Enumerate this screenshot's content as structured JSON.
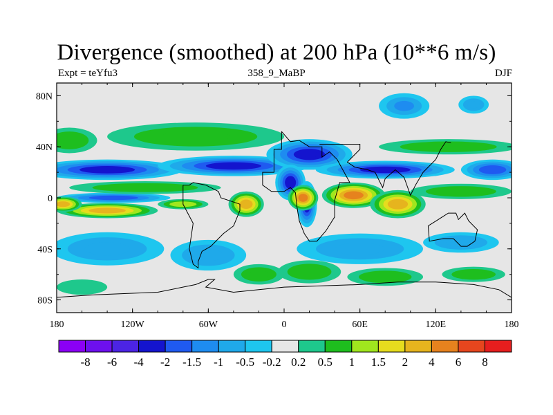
{
  "chart_data": {
    "type": "heatmap",
    "title": "Divergence (smoothed) at 200 hPa (10**6 m/s)",
    "left_label": "Expt = teYfu3",
    "center_label": "358_9_MaBP",
    "right_label": "DJF",
    "xlim": [
      -180,
      180
    ],
    "ylim": [
      -90,
      90
    ],
    "xticks": [
      {
        "value": -180,
        "label": "180"
      },
      {
        "value": -120,
        "label": "120W"
      },
      {
        "value": -60,
        "label": "60W"
      },
      {
        "value": 0,
        "label": "0"
      },
      {
        "value": 60,
        "label": "60E"
      },
      {
        "value": 120,
        "label": "120E"
      },
      {
        "value": 180,
        "label": "180"
      }
    ],
    "yticks": [
      {
        "value": 80,
        "label": "80N"
      },
      {
        "value": 40,
        "label": "40N"
      },
      {
        "value": 0,
        "label": "0"
      },
      {
        "value": -40,
        "label": "40S"
      },
      {
        "value": -80,
        "label": "80S"
      }
    ],
    "colorbar": {
      "colors": [
        "#8b00f5",
        "#6d10ee",
        "#4c24e4",
        "#1414ce",
        "#1f5af0",
        "#1e8cf0",
        "#1fa9ea",
        "#1ec6ef",
        "#e6e6e6",
        "#1ec88c",
        "#1ebe1e",
        "#a0e61e",
        "#e6dc1e",
        "#e6b41e",
        "#e6821e",
        "#e6461e",
        "#e61e1e"
      ],
      "labels": [
        "-8",
        "-6",
        "-4",
        "-2",
        "-1.5",
        "-1",
        "-0.5",
        "-0.2",
        "0.2",
        "0.5",
        "1",
        "1.5",
        "2",
        "4",
        "6",
        "8"
      ]
    },
    "fields": [
      {
        "lon": -140,
        "lat": 22,
        "rx": 60,
        "ry": 8,
        "value": -2.6
      },
      {
        "lon": -40,
        "lat": 25,
        "rx": 60,
        "ry": 8,
        "value": -2.6
      },
      {
        "lon": 20,
        "lat": 34,
        "rx": 34,
        "ry": 12,
        "value": -3.0
      },
      {
        "lon": 80,
        "lat": 22,
        "rx": 55,
        "ry": 7,
        "value": -2.2
      },
      {
        "lon": 165,
        "lat": 22,
        "rx": 25,
        "ry": 8,
        "value": -1.8
      },
      {
        "lon": 5,
        "lat": 12,
        "rx": 12,
        "ry": 14,
        "value": -3.5
      },
      {
        "lon": 18,
        "lat": -5,
        "rx": 8,
        "ry": 18,
        "value": -3.0
      },
      {
        "lon": -135,
        "lat": 0,
        "rx": 45,
        "ry": 4,
        "value": -1.9
      },
      {
        "lon": -70,
        "lat": 48,
        "rx": 70,
        "ry": 11,
        "value": 1.0
      },
      {
        "lon": -170,
        "lat": 45,
        "rx": 22,
        "ry": 10,
        "value": 0.9
      },
      {
        "lon": 130,
        "lat": 40,
        "rx": 55,
        "ry": 6,
        "value": 0.8
      },
      {
        "lon": 95,
        "lat": 72,
        "rx": 20,
        "ry": 10,
        "value": -1.0
      },
      {
        "lon": 150,
        "lat": 73,
        "rx": 12,
        "ry": 7,
        "value": -0.8
      },
      {
        "lon": -110,
        "lat": 8,
        "rx": 60,
        "ry": 5,
        "value": 1.0
      },
      {
        "lon": 140,
        "lat": 5,
        "rx": 40,
        "ry": 6,
        "value": 1.0
      },
      {
        "lon": -140,
        "lat": -10,
        "rx": 40,
        "ry": 6,
        "value": 3.0
      },
      {
        "lon": -30,
        "lat": -5,
        "rx": 14,
        "ry": 10,
        "value": 3.5
      },
      {
        "lon": 15,
        "lat": 0,
        "rx": 12,
        "ry": 10,
        "value": 5.0
      },
      {
        "lon": 55,
        "lat": 2,
        "rx": 25,
        "ry": 10,
        "value": 4.2
      },
      {
        "lon": 90,
        "lat": -5,
        "rx": 22,
        "ry": 11,
        "value": 2.5
      },
      {
        "lon": -175,
        "lat": -5,
        "rx": 15,
        "ry": 6,
        "value": 2.2
      },
      {
        "lon": -80,
        "lat": -5,
        "rx": 20,
        "ry": 4,
        "value": 1.5
      },
      {
        "lon": -140,
        "lat": -40,
        "rx": 45,
        "ry": 13,
        "value": -0.9
      },
      {
        "lon": -60,
        "lat": -45,
        "rx": 30,
        "ry": 12,
        "value": -0.8
      },
      {
        "lon": 60,
        "lat": -40,
        "rx": 50,
        "ry": 12,
        "value": -0.9
      },
      {
        "lon": 140,
        "lat": -35,
        "rx": 30,
        "ry": 8,
        "value": -0.8
      },
      {
        "lon": -20,
        "lat": -60,
        "rx": 20,
        "ry": 8,
        "value": 0.9
      },
      {
        "lon": 20,
        "lat": -58,
        "rx": 25,
        "ry": 9,
        "value": 0.9
      },
      {
        "lon": 80,
        "lat": -62,
        "rx": 30,
        "ry": 7,
        "value": 0.8
      },
      {
        "lon": 150,
        "lat": -60,
        "rx": 25,
        "ry": 6,
        "value": 0.7
      },
      {
        "lon": -160,
        "lat": -70,
        "rx": 20,
        "ry": 6,
        "value": 0.5
      }
    ],
    "coastlines": [
      {
        "name": "europe-africa",
        "points": [
          [
            -2,
            52
          ],
          [
            -2,
            38
          ],
          [
            -8,
            38
          ],
          [
            -8,
            20
          ],
          [
            -17,
            20
          ],
          [
            -17,
            10
          ],
          [
            -10,
            5
          ],
          [
            0,
            5
          ],
          [
            5,
            8
          ],
          [
            9,
            4
          ],
          [
            10,
            -6
          ],
          [
            12,
            -18
          ],
          [
            16,
            -28
          ],
          [
            20,
            -34
          ],
          [
            26,
            -34
          ],
          [
            33,
            -26
          ],
          [
            40,
            -15
          ],
          [
            40,
            -2
          ],
          [
            44,
            12
          ],
          [
            52,
            12
          ],
          [
            42,
            30
          ],
          [
            36,
            36
          ],
          [
            30,
            32
          ],
          [
            30,
            40
          ],
          [
            26,
            40
          ],
          [
            20,
            40
          ],
          [
            12,
            45
          ],
          [
            5,
            44
          ],
          [
            -2,
            52
          ]
        ]
      },
      {
        "name": "asia",
        "points": [
          [
            28,
            42
          ],
          [
            60,
            42
          ],
          [
            60,
            38
          ],
          [
            50,
            28
          ],
          [
            56,
            24
          ],
          [
            66,
            22
          ],
          [
            72,
            20
          ],
          [
            78,
            8
          ],
          [
            80,
            15
          ],
          [
            88,
            22
          ],
          [
            95,
            16
          ],
          [
            100,
            2
          ],
          [
            104,
            10
          ],
          [
            110,
            20
          ],
          [
            120,
            30
          ],
          [
            124,
            38
          ],
          [
            128,
            44
          ],
          [
            132,
            43
          ]
        ]
      },
      {
        "name": "south-america",
        "points": [
          [
            -80,
            10
          ],
          [
            -75,
            10
          ],
          [
            -72,
            12
          ],
          [
            -62,
            10
          ],
          [
            -52,
            5
          ],
          [
            -50,
            0
          ],
          [
            -35,
            -5
          ],
          [
            -35,
            -10
          ],
          [
            -40,
            -22
          ],
          [
            -48,
            -28
          ],
          [
            -58,
            -38
          ],
          [
            -65,
            -42
          ],
          [
            -68,
            -50
          ],
          [
            -68,
            -55
          ],
          [
            -72,
            -52
          ],
          [
            -75,
            -40
          ],
          [
            -72,
            -20
          ],
          [
            -80,
            -5
          ],
          [
            -80,
            10
          ]
        ]
      },
      {
        "name": "australia",
        "points": [
          [
            114,
            -22
          ],
          [
            122,
            -17
          ],
          [
            130,
            -12
          ],
          [
            136,
            -12
          ],
          [
            138,
            -17
          ],
          [
            143,
            -12
          ],
          [
            146,
            -18
          ],
          [
            153,
            -25
          ],
          [
            151,
            -34
          ],
          [
            145,
            -38
          ],
          [
            140,
            -38
          ],
          [
            134,
            -32
          ],
          [
            126,
            -32
          ],
          [
            115,
            -34
          ],
          [
            114,
            -22
          ]
        ]
      },
      {
        "name": "antarctica",
        "points": [
          [
            -180,
            -78
          ],
          [
            -150,
            -76
          ],
          [
            -100,
            -74
          ],
          [
            -70,
            -68
          ],
          [
            -60,
            -64
          ],
          [
            -55,
            -64
          ],
          [
            -62,
            -70
          ],
          [
            -40,
            -74
          ],
          [
            -20,
            -72
          ],
          [
            0,
            -70
          ],
          [
            30,
            -69
          ],
          [
            60,
            -68
          ],
          [
            90,
            -66
          ],
          [
            120,
            -66
          ],
          [
            150,
            -68
          ],
          [
            170,
            -72
          ],
          [
            180,
            -78
          ]
        ]
      }
    ]
  }
}
